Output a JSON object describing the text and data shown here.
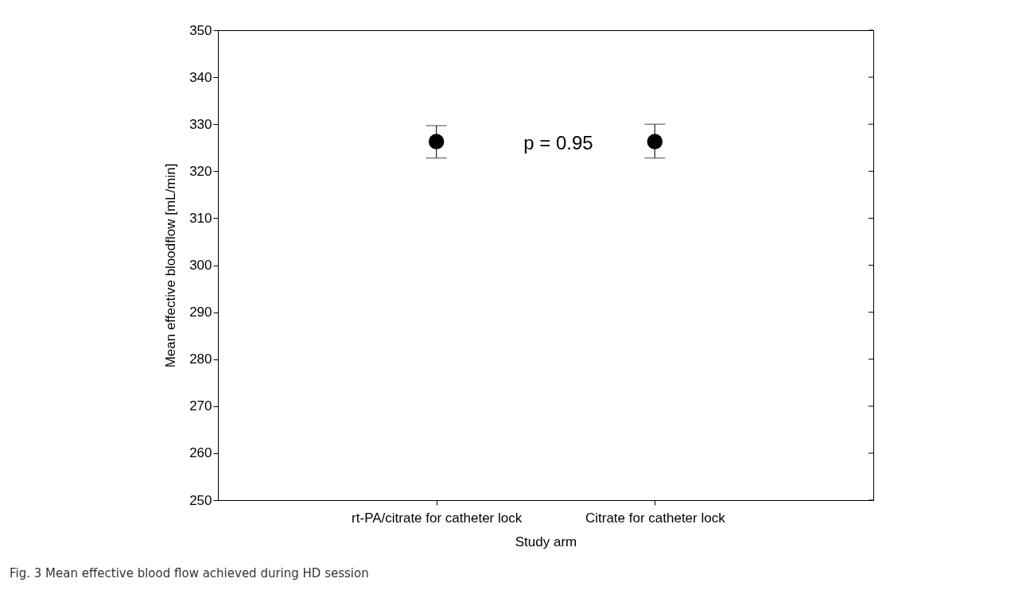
{
  "chart_data": {
    "type": "scatter",
    "xlabel": "Study arm",
    "ylabel": "Mean effective bloodflow [mL/min]",
    "categories": [
      "rt-PA/citrate for catheter lock",
      "Citrate for catheter lock"
    ],
    "values": [
      326.3,
      326.3
    ],
    "errors": [
      [
        322.8,
        329.7
      ],
      [
        322.8,
        330.0
      ]
    ],
    "color": "#000000",
    "marker": "circle",
    "grid": false,
    "ylim": [
      250,
      350
    ],
    "yticks": [
      250,
      260,
      270,
      280,
      290,
      300,
      310,
      320,
      330,
      340,
      350
    ],
    "annotations": [
      "p = 0.95",
      "Fig. 3 Mean effective blood flow achieved during HD session"
    ]
  }
}
